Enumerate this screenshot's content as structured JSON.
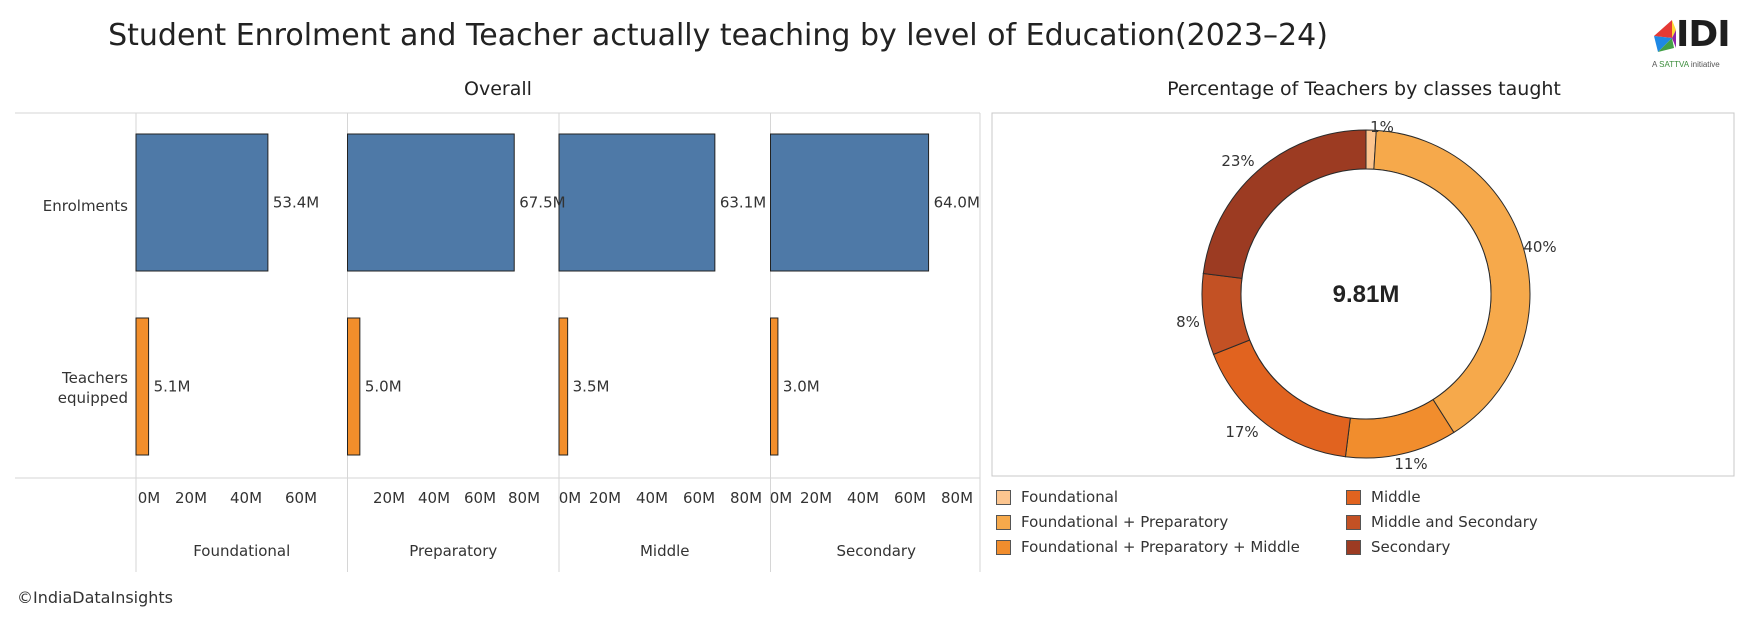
{
  "title": "Student Enrolment and Teacher actually teaching by level of Education(2023–24)",
  "logo": {
    "text": "IDI",
    "tagline_prefix": "A ",
    "tagline_brand": "SATTVA",
    "tagline_suffix": " initiative"
  },
  "credit": "©IndiaDataInsights",
  "chart_data": [
    {
      "type": "bar",
      "orientation": "horizontal",
      "title": "Overall",
      "categories": [
        "Enrolments",
        "Teachers equipped"
      ],
      "panels": [
        "Foundational",
        "Preparatory",
        "Middle",
        "Secondary"
      ],
      "series": [
        {
          "panel": "Foundational",
          "values": [
            53.4,
            5.1
          ],
          "labels": [
            "53.4M",
            "5.1M"
          ]
        },
        {
          "panel": "Preparatory",
          "values": [
            67.5,
            5.0
          ],
          "labels": [
            "67.5M",
            "5.0M"
          ]
        },
        {
          "panel": "Middle",
          "values": [
            63.1,
            3.5
          ],
          "labels": [
            "63.1M",
            "3.5M"
          ]
        },
        {
          "panel": "Secondary",
          "values": [
            64.0,
            3.0
          ],
          "labels": [
            "64.0M",
            "3.0M"
          ]
        }
      ],
      "category_colors": [
        "#4e79a7",
        "#f28e2b"
      ],
      "xlim": [
        0,
        80
      ],
      "xticks": [
        {
          "v": 0,
          "t": "0M"
        },
        {
          "v": 20,
          "t": "20M"
        },
        {
          "v": 40,
          "t": "40M"
        },
        {
          "v": 60,
          "t": "60M"
        },
        {
          "v": 80,
          "t": "80M"
        }
      ],
      "panel_tick_sets": [
        [
          "0M",
          "20M",
          "40M",
          "60M"
        ],
        [
          "20M",
          "40M",
          "60M",
          "80M"
        ],
        [
          "0M",
          "20M",
          "40M",
          "60M",
          "80M"
        ],
        [
          "0M",
          "20M",
          "40M",
          "60M",
          "80M"
        ]
      ]
    },
    {
      "type": "pie",
      "style": "donut",
      "title": "Percentage of Teachers by classes taught",
      "center_label": "9.81M",
      "slices": [
        {
          "name": "Foundational",
          "value": 1,
          "label": "1%",
          "color": "#fcc58f"
        },
        {
          "name": "Foundational + Preparatory",
          "value": 40,
          "label": "40%",
          "color": "#f6a94b"
        },
        {
          "name": "Foundational + Preparatory + Middle",
          "value": 11,
          "label": "11%",
          "color": "#f18d2d"
        },
        {
          "name": "Middle",
          "value": 17,
          "label": "17%",
          "color": "#e1631f"
        },
        {
          "name": "Middle and Secondary",
          "value": 8,
          "label": "8%",
          "color": "#c35124"
        },
        {
          "name": "Secondary",
          "value": 23,
          "label": "23%",
          "color": "#9c3b22"
        }
      ],
      "legend_order": [
        "Foundational",
        "Middle",
        "Foundational + Preparatory",
        "Middle and Secondary",
        "Foundational + Preparatory + Middle",
        "Secondary"
      ],
      "legend_placement": "bottom"
    }
  ]
}
